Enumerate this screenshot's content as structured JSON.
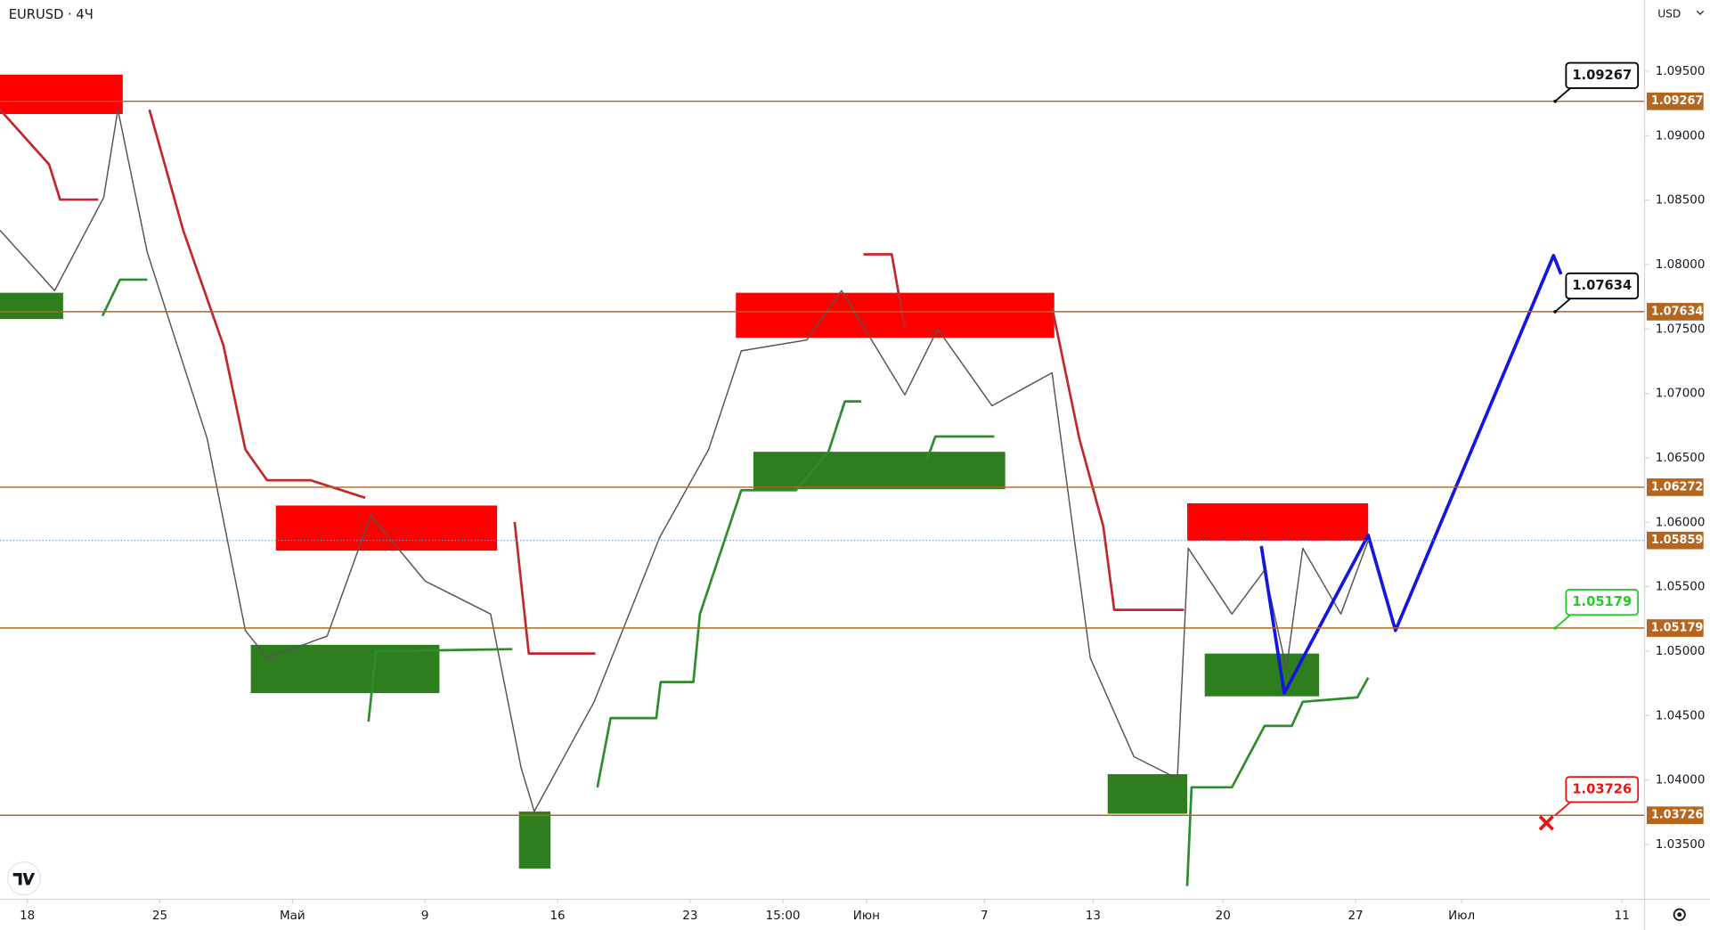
{
  "chart_data": {
    "type": "line",
    "title": "EURUSD · 4Ч",
    "currency": "USD",
    "xlim": [
      -0.206,
      12.2
    ],
    "ylim": [
      1.03074,
      1.10053
    ],
    "xticks": [
      {
        "value": 0,
        "label": "18"
      },
      {
        "value": 1,
        "label": "25"
      },
      {
        "value": 2,
        "label": "Май"
      },
      {
        "value": 3,
        "label": "9"
      },
      {
        "value": 4,
        "label": "16"
      },
      {
        "value": 5,
        "label": "23"
      },
      {
        "value": 5.7,
        "label": "15:00"
      },
      {
        "value": 6.33,
        "label": "Июн"
      },
      {
        "value": 7.22,
        "label": "7"
      },
      {
        "value": 8.04,
        "label": "13"
      },
      {
        "value": 9.02,
        "label": "20"
      },
      {
        "value": 10.02,
        "label": "27"
      },
      {
        "value": 10.82,
        "label": "Июл"
      },
      {
        "value": 12.03,
        "label": "11"
      }
    ],
    "yticks": [
      {
        "value": 1.035,
        "label": "1.03500"
      },
      {
        "value": 1.04,
        "label": "1.04000"
      },
      {
        "value": 1.045,
        "label": "1.04500"
      },
      {
        "value": 1.05,
        "label": "1.05000"
      },
      {
        "value": 1.055,
        "label": "1.05500"
      },
      {
        "value": 1.06,
        "label": "1.06000"
      },
      {
        "value": 1.065,
        "label": "1.06500"
      },
      {
        "value": 1.07,
        "label": "1.07000"
      },
      {
        "value": 1.075,
        "label": "1.07500"
      },
      {
        "value": 1.08,
        "label": "1.08000"
      },
      {
        "value": 1.085,
        "label": "1.08500"
      },
      {
        "value": 1.09,
        "label": "1.09000"
      },
      {
        "value": 1.095,
        "label": "1.09500"
      }
    ],
    "levels": [
      {
        "value": 1.09267,
        "callout": "#000000"
      },
      {
        "value": 1.07634,
        "callout": "#000000"
      },
      {
        "value": 1.06272
      },
      {
        "value": 1.05179,
        "callout": "#22cc22"
      },
      {
        "value": 1.03726,
        "callout": "#ee1111"
      }
    ],
    "current_price": 1.05859,
    "zones": [
      {
        "x": [
          -0.206,
          0.72
        ],
        "range": [
          1.09168,
          1.09474
        ],
        "color": "#ff0000"
      },
      {
        "x": [
          -0.206,
          0.27
        ],
        "range": [
          1.07577,
          1.07781
        ],
        "color": "#2e7d1e"
      },
      {
        "x": [
          1.875,
          3.544
        ],
        "range": [
          1.0578,
          1.0613
        ],
        "color": "#ff0000"
      },
      {
        "x": [
          1.686,
          3.109
        ],
        "range": [
          1.04674,
          1.05049
        ],
        "color": "#2e7d1e"
      },
      {
        "x": [
          3.709,
          3.947
        ],
        "range": [
          1.03312,
          1.03755
        ],
        "color": "#2e7d1e"
      },
      {
        "x": [
          5.345,
          7.747
        ],
        "range": [
          1.07432,
          1.07781
        ],
        "color": "#ff0000"
      },
      {
        "x": [
          5.477,
          7.377
        ],
        "range": [
          1.06257,
          1.06547
        ],
        "color": "#2e7d1e"
      },
      {
        "x": [
          8.15,
          8.75
        ],
        "range": [
          1.03738,
          1.04045
        ],
        "color": "#2e7d1e"
      },
      {
        "x": [
          8.75,
          10.115
        ],
        "range": [
          1.05857,
          1.06147
        ],
        "color": "#ff0000"
      },
      {
        "x": [
          8.882,
          9.745
        ],
        "range": [
          1.04649,
          1.04981
        ],
        "color": "#2e7d1e"
      }
    ],
    "series": [
      {
        "color": "#555555",
        "width": 1.2,
        "x": [
          -0.206,
          0.206,
          0.576,
          0.683,
          0.905,
          1.357,
          1.645,
          1.809,
          2.262,
          2.59,
          3.002,
          3.495,
          3.725,
          3.824,
          4.276,
          4.77,
          5.14,
          5.386,
          5.88,
          6.143,
          6.62,
          6.867,
          7.278,
          7.73,
          8.018,
          8.347,
          8.676,
          8.758,
          9.087,
          9.334,
          9.498,
          9.622,
          9.909,
          10.115
        ],
        "values": [
          1.08266,
          1.07798,
          1.08521,
          1.09202,
          1.08096,
          1.06649,
          1.0516,
          1.04947,
          1.05117,
          1.06053,
          1.05543,
          1.05288,
          1.04096,
          1.03756,
          1.04607,
          1.05883,
          1.06564,
          1.0733,
          1.07415,
          1.07798,
          1.06989,
          1.075,
          1.06904,
          1.0716,
          1.04947,
          1.04181,
          1.04011,
          1.05798,
          1.05288,
          1.05628,
          1.04862,
          1.05798,
          1.05288,
          1.05858
        ]
      },
      {
        "color": "#c0282d",
        "width": 2.2,
        "x": [
          -0.206,
          0.164,
          0.247,
          0.534,
          null,
          0.921,
          1.176,
          1.48,
          1.645,
          1.809,
          2.138,
          2.549,
          null,
          3.676,
          3.783,
          4.285,
          null,
          6.307,
          6.521,
          6.62,
          null,
          7.73,
          7.936,
          8.117,
          8.199,
          8.725
        ],
        "values": [
          1.09202,
          1.08777,
          1.08504,
          1.08504,
          null,
          1.09202,
          1.08266,
          1.07372,
          1.06564,
          1.06326,
          1.06326,
          1.0619,
          null,
          1.06002,
          1.04981,
          1.04981,
          null,
          1.08079,
          1.08079,
          1.075,
          null,
          1.0767,
          1.06649,
          1.05968,
          1.0532,
          1.0532
        ]
      },
      {
        "color": "#2e8b2e",
        "width": 2.2,
        "x": [
          0.567,
          0.699,
          0.905,
          null,
          2.574,
          2.631,
          3.659,
          null,
          4.301,
          4.4,
          4.745,
          4.778,
          5.025,
          5.074,
          5.386,
          5.797,
          6.044,
          6.167,
          6.291,
          null,
          6.784,
          6.85,
          7.294,
          null,
          8.75,
          8.783,
          9.087,
          9.334,
          9.539,
          9.622,
          10.033,
          10.115
        ],
        "values": [
          1.07602,
          1.07883,
          1.07883,
          null,
          1.04453,
          1.04998,
          1.05015,
          null,
          1.03943,
          1.0448,
          1.0448,
          1.0476,
          1.0476,
          1.05288,
          1.06249,
          1.06249,
          1.06547,
          1.06938,
          1.06938,
          null,
          1.06479,
          1.06666,
          1.06666,
          null,
          1.03177,
          1.03943,
          1.03943,
          1.0442,
          1.0442,
          1.04607,
          1.04641,
          1.04794
        ]
      },
      {
        "color": "#1515e0",
        "width": 3,
        "x": [
          9.309,
          9.482,
          10.115,
          10.321,
          11.513,
          11.57
        ],
        "values": [
          1.05815,
          1.04674,
          1.059,
          1.0516,
          1.0807,
          1.07925
        ]
      }
    ]
  }
}
